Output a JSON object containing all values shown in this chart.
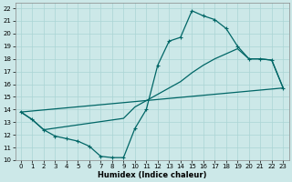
{
  "xlabel": "Humidex (Indice chaleur)",
  "bg_color": "#cce8e8",
  "line_color": "#006666",
  "grid_color": "#aad4d4",
  "xlim": [
    -0.5,
    23.5
  ],
  "ylim": [
    10,
    22.4
  ],
  "xticks": [
    0,
    1,
    2,
    3,
    4,
    5,
    6,
    7,
    8,
    9,
    10,
    11,
    12,
    13,
    14,
    15,
    16,
    17,
    18,
    19,
    20,
    21,
    22,
    23
  ],
  "yticks": [
    10,
    11,
    12,
    13,
    14,
    15,
    16,
    17,
    18,
    19,
    20,
    21,
    22
  ],
  "line1_x": [
    0,
    1,
    2,
    3,
    4,
    5,
    6,
    7,
    8,
    9,
    10,
    11,
    12,
    13,
    14,
    15,
    16,
    17,
    18,
    19,
    20,
    21,
    22,
    23
  ],
  "line1_y": [
    13.8,
    13.2,
    12.4,
    11.9,
    11.7,
    11.5,
    11.1,
    10.3,
    10.2,
    10.2,
    12.5,
    14.0,
    17.5,
    19.4,
    19.7,
    21.8,
    21.4,
    21.1,
    20.4,
    19.0,
    18.0,
    18.0,
    17.9,
    15.7
  ],
  "line2_x": [
    0,
    23
  ],
  "line2_y": [
    13.8,
    15.7
  ],
  "line3_x": [
    0,
    1,
    2,
    9,
    10,
    11,
    12,
    13,
    14,
    15,
    16,
    17,
    18,
    19,
    20,
    21,
    22,
    23
  ],
  "line3_y": [
    13.8,
    13.2,
    12.4,
    13.3,
    14.2,
    14.7,
    15.2,
    15.7,
    16.2,
    16.9,
    17.5,
    18.0,
    18.4,
    18.8,
    18.0,
    18.0,
    17.9,
    15.7
  ],
  "marker": "+",
  "markersize": 3,
  "markeredgewidth": 0.8,
  "linewidth": 0.9,
  "tick_labelsize": 5.0,
  "xlabel_fontsize": 6.0
}
